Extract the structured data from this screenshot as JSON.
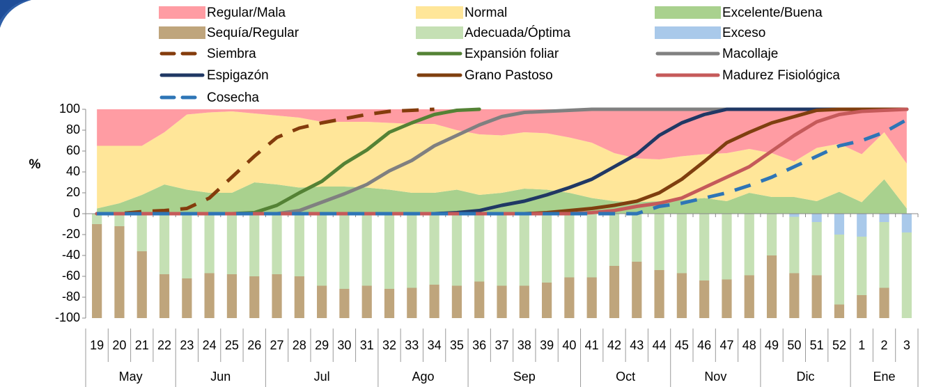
{
  "chart_data": {
    "type": "combo",
    "y_label": "%",
    "categories": [
      "19",
      "20",
      "21",
      "22",
      "23",
      "24",
      "25",
      "26",
      "27",
      "28",
      "29",
      "30",
      "31",
      "32",
      "33",
      "34",
      "35",
      "36",
      "37",
      "38",
      "39",
      "40",
      "41",
      "42",
      "43",
      "44",
      "45",
      "46",
      "47",
      "48",
      "49",
      "50",
      "51",
      "52",
      "1",
      "2",
      "3"
    ],
    "category_groups": [
      "May",
      null,
      null,
      null,
      "Jun",
      null,
      null,
      null,
      "Jul",
      null,
      null,
      null,
      null,
      "Ago",
      null,
      null,
      null,
      "Sep",
      null,
      null,
      null,
      null,
      "Oct",
      null,
      null,
      null,
      "Nov",
      null,
      null,
      null,
      "Dic",
      null,
      null,
      null,
      "Ene",
      null,
      null
    ],
    "ylim": [
      -100,
      100
    ],
    "yticks": [
      -100,
      -80,
      -60,
      -40,
      -20,
      0,
      20,
      40,
      60,
      80,
      100
    ],
    "grid": false,
    "legend": "top",
    "series": [
      {
        "name": "Regular/Mala",
        "type": "area",
        "color": "#ff9ca3",
        "values": [
          35,
          35,
          35,
          22,
          5,
          3,
          2,
          4,
          6,
          8,
          12,
          12,
          12,
          13,
          14,
          14,
          20,
          24,
          25,
          22,
          23,
          27,
          32,
          42,
          47,
          48,
          45,
          43,
          42,
          38,
          42,
          50,
          37,
          33,
          43,
          22,
          52
        ]
      },
      {
        "name": "Normal",
        "type": "area",
        "color": "#ffe699",
        "values": [
          60,
          55,
          47,
          50,
          72,
          77,
          78,
          66,
          66,
          67,
          62,
          62,
          63,
          64,
          66,
          66,
          57,
          58,
          55,
          54,
          54,
          53,
          53,
          46,
          42,
          40,
          42,
          42,
          46,
          42,
          42,
          34,
          51,
          46,
          46,
          45,
          43
        ]
      },
      {
        "name": "Excelente/Buena",
        "type": "area",
        "color": "#a9d18e",
        "values": [
          5,
          10,
          18,
          28,
          23,
          20,
          20,
          30,
          28,
          25,
          26,
          26,
          25,
          23,
          20,
          20,
          23,
          18,
          20,
          24,
          23,
          20,
          15,
          12,
          11,
          12,
          13,
          15,
          12,
          20,
          16,
          16,
          12,
          21,
          11,
          33,
          5
        ]
      },
      {
        "name": "Sequía/Regular",
        "type": "bar",
        "color": "#bfa57c",
        "values": [
          -90,
          -88,
          -64,
          -42,
          -38,
          -43,
          -42,
          -40,
          -42,
          -40,
          -31,
          -28,
          -31,
          -28,
          -29,
          -32,
          -31,
          -35,
          -31,
          -31,
          -34,
          -39,
          -39,
          -50,
          -54,
          -46,
          -43,
          -36,
          -37,
          -41,
          -60,
          -43,
          -41,
          -13,
          -22,
          -29,
          0
        ]
      },
      {
        "name": "Adecuada/Óptima",
        "type": "bar",
        "color": "#c5e0b4",
        "values": [
          -10,
          -12,
          -36,
          -58,
          -62,
          -57,
          -58,
          -60,
          -58,
          -60,
          -69,
          -72,
          -69,
          -72,
          -71,
          -68,
          -69,
          -65,
          -69,
          -69,
          -66,
          -61,
          -61,
          -50,
          -46,
          -54,
          -57,
          -64,
          -63,
          -59,
          -40,
          -54,
          -51,
          -67,
          -56,
          -63,
          -82
        ]
      },
      {
        "name": "Exceso",
        "type": "bar",
        "color": "#a9c9ea",
        "values": [
          0,
          0,
          0,
          0,
          0,
          0,
          0,
          0,
          0,
          0,
          0,
          0,
          0,
          0,
          0,
          0,
          0,
          0,
          0,
          0,
          0,
          0,
          0,
          0,
          0,
          0,
          0,
          0,
          0,
          0,
          0,
          -3,
          -8,
          -20,
          -22,
          -8,
          -18
        ]
      },
      {
        "name": "Siembra",
        "type": "line",
        "style": "dashed",
        "color": "#843c0c",
        "values": [
          0,
          0,
          2,
          3,
          5,
          15,
          35,
          55,
          73,
          82,
          87,
          91,
          95,
          98,
          99,
          100,
          null,
          null,
          null,
          null,
          null,
          null,
          null,
          null,
          null,
          null,
          null,
          null,
          null,
          null,
          null,
          null,
          null,
          null,
          null,
          null,
          null
        ]
      },
      {
        "name": "Expansión foliar",
        "type": "line",
        "color": "#548235",
        "values": [
          0,
          0,
          0,
          0,
          0,
          0,
          0,
          1,
          8,
          20,
          31,
          48,
          61,
          78,
          87,
          95,
          99,
          100,
          null,
          null,
          null,
          null,
          null,
          null,
          null,
          null,
          null,
          null,
          null,
          null,
          null,
          null,
          null,
          null,
          null,
          null,
          null
        ]
      },
      {
        "name": "Macollaje",
        "type": "line",
        "color": "#808080",
        "values": [
          0,
          0,
          0,
          0,
          0,
          0,
          0,
          0,
          0,
          3,
          11,
          19,
          28,
          41,
          51,
          65,
          75,
          85,
          93,
          97,
          98,
          99,
          100,
          100,
          100,
          100,
          100,
          100,
          100,
          100,
          100,
          100,
          100,
          100,
          100,
          100,
          100
        ]
      },
      {
        "name": "Espigazón",
        "type": "line",
        "color": "#203864",
        "values": [
          0,
          0,
          0,
          0,
          0,
          0,
          0,
          0,
          0,
          0,
          0,
          0,
          0,
          0,
          0,
          0,
          1,
          3,
          8,
          12,
          18,
          25,
          33,
          45,
          57,
          75,
          87,
          95,
          100,
          100,
          100,
          100,
          100,
          100,
          100,
          100,
          100
        ]
      },
      {
        "name": "Grano Pastoso",
        "type": "line",
        "color": "#7f3f0f",
        "values": [
          0,
          0,
          0,
          0,
          0,
          0,
          0,
          0,
          0,
          0,
          0,
          0,
          0,
          0,
          0,
          0,
          0,
          0,
          0,
          0,
          1,
          3,
          5,
          8,
          12,
          20,
          33,
          50,
          68,
          78,
          87,
          93,
          99,
          100,
          100,
          100,
          100
        ]
      },
      {
        "name": "Madurez Fisiológica",
        "type": "line",
        "color": "#c55a5a",
        "values": [
          0,
          0,
          0,
          0,
          0,
          0,
          0,
          0,
          0,
          0,
          0,
          0,
          0,
          0,
          0,
          0,
          0,
          0,
          0,
          0,
          0,
          0,
          1,
          3,
          7,
          10,
          15,
          25,
          35,
          45,
          60,
          75,
          88,
          95,
          98,
          99,
          100
        ]
      },
      {
        "name": "Cosecha",
        "type": "line",
        "style": "dashed",
        "color": "#2e75b6",
        "values": [
          0,
          0,
          0,
          0,
          0,
          0,
          0,
          0,
          0,
          0,
          0,
          0,
          0,
          0,
          0,
          0,
          0,
          0,
          0,
          0,
          0,
          0,
          0,
          0,
          0,
          7,
          10,
          15,
          20,
          27,
          35,
          45,
          55,
          65,
          70,
          78,
          90
        ]
      }
    ]
  }
}
